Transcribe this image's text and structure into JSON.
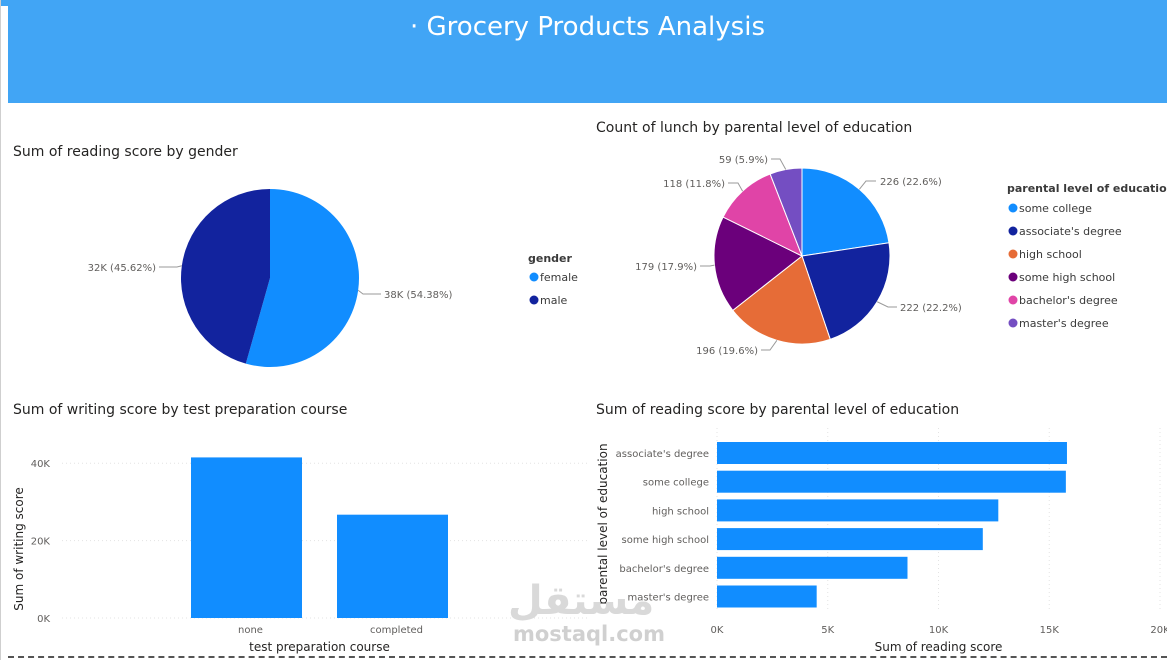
{
  "header": {
    "title": "· Grocery Products Analysis"
  },
  "watermark": {
    "main": "مستقل",
    "sub": "mostaql.com"
  },
  "chart_data": [
    {
      "type": "pie",
      "title": "Sum of reading score by gender",
      "legend_title": "gender",
      "legend_position": "right",
      "slices": [
        {
          "label": "female",
          "value": 38000,
          "display": "38K (54.38%)",
          "percent": 54.38,
          "color": "#118dff"
        },
        {
          "label": "male",
          "value": 32000,
          "display": "32K (45.62%)",
          "percent": 45.62,
          "color": "#12239e"
        }
      ]
    },
    {
      "type": "pie",
      "title": "Count of lunch by parental level of education",
      "legend_title": "parental level of education",
      "legend_position": "right",
      "slices": [
        {
          "label": "some college",
          "value": 226,
          "display": "226 (22.6%)",
          "percent": 22.6,
          "color": "#118dff"
        },
        {
          "label": "associate's degree",
          "value": 222,
          "display": "222 (22.2%)",
          "percent": 22.2,
          "color": "#12239e"
        },
        {
          "label": "high school",
          "value": 196,
          "display": "196 (19.6%)",
          "percent": 19.6,
          "color": "#e66c37"
        },
        {
          "label": "some high school",
          "value": 179,
          "display": "179 (17.9%)",
          "percent": 17.9,
          "color": "#6b007b"
        },
        {
          "label": "bachelor's degree",
          "value": 118,
          "display": "118 (11.8%)",
          "percent": 11.8,
          "color": "#e044a7"
        },
        {
          "label": "master's degree",
          "value": 59,
          "display": "59 (5.9%)",
          "percent": 5.9,
          "color": "#744ec2"
        }
      ]
    },
    {
      "type": "bar",
      "title": "Sum of writing score by test preparation course",
      "categories": [
        "none",
        "completed"
      ],
      "values": [
        41500,
        26700
      ],
      "xlabel": "test preparation course",
      "ylabel": "Sum of writing score",
      "ylim": [
        0,
        46000
      ],
      "yticks": [
        0,
        20000,
        40000
      ],
      "ytick_labels": [
        "0K",
        "20K",
        "40K"
      ],
      "grid": true,
      "color": "#118dff"
    },
    {
      "type": "bar",
      "orientation": "horizontal",
      "title": "Sum of reading score by parental level of education",
      "categories": [
        "associate's degree",
        "some college",
        "high school",
        "some high school",
        "bachelor's degree",
        "master's degree"
      ],
      "values": [
        15800,
        15750,
        12700,
        12000,
        8600,
        4500
      ],
      "xlabel": "Sum of reading score",
      "ylabel": "parental level of education",
      "xlim": [
        0,
        20000
      ],
      "xticks": [
        0,
        5000,
        10000,
        15000,
        20000
      ],
      "xtick_labels": [
        "0K",
        "5K",
        "10K",
        "15K",
        "20K"
      ],
      "grid": true,
      "color": "#118dff"
    }
  ]
}
